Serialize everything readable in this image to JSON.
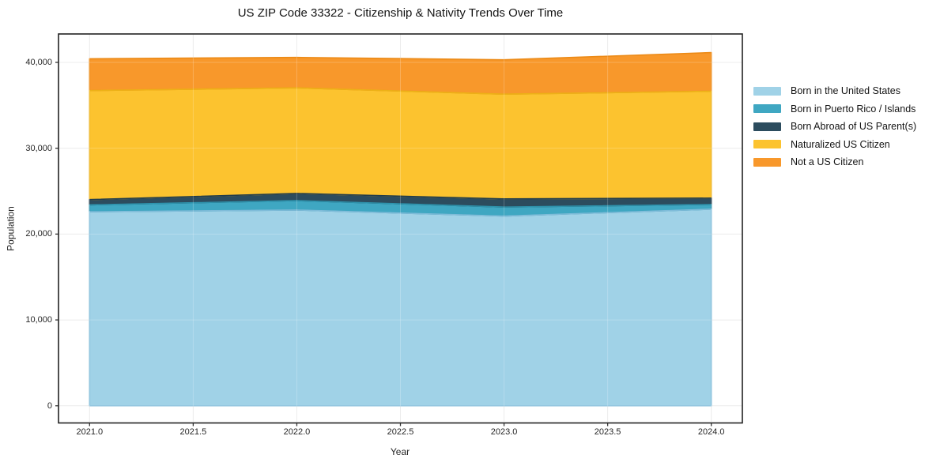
{
  "page": {
    "title": "US ZIP Code 33322 - Citizenship & Nativity Trends Over Time"
  },
  "chart_data": {
    "type": "area",
    "stacked": true,
    "title": "US ZIP Code 33322 - Citizenship & Nativity Trends Over Time",
    "xlabel": "Year",
    "ylabel": "Population",
    "x": [
      2021,
      2022,
      2023,
      2024
    ],
    "series": [
      {
        "name": "Born in the United States",
        "color": "#a0d2e7",
        "edge": "#7fbcd9",
        "values": [
          22600,
          22800,
          22100,
          22900
        ]
      },
      {
        "name": "Born in Puerto Rico / Islands",
        "color": "#3fa7c2",
        "edge": "#2e93ad",
        "values": [
          800,
          1100,
          1050,
          550
        ]
      },
      {
        "name": "Born Abroad of US Parent(s)",
        "color": "#2c4c5e",
        "edge": "#223d4c",
        "values": [
          620,
          830,
          950,
          740
        ]
      },
      {
        "name": "Naturalized US Citizen",
        "color": "#fcc32f",
        "edge": "#edb117",
        "values": [
          12700,
          12300,
          12200,
          12450
        ]
      },
      {
        "name": "Not a US Citizen",
        "color": "#f8982b",
        "edge": "#ec8a16",
        "values": [
          3700,
          3550,
          4000,
          4500
        ]
      }
    ],
    "stacked_totals": [
      40420,
      40580,
      40300,
      41140
    ],
    "xlim": [
      2020.85,
      2024.15
    ],
    "ylim": [
      -2000,
      43310
    ],
    "x_ticks": [
      {
        "v": 2021.0,
        "label": "2021.0"
      },
      {
        "v": 2021.5,
        "label": "2021.5"
      },
      {
        "v": 2022.0,
        "label": "2022.0"
      },
      {
        "v": 2022.5,
        "label": "2022.5"
      },
      {
        "v": 2023.0,
        "label": "2023.0"
      },
      {
        "v": 2023.5,
        "label": "2023.5"
      },
      {
        "v": 2024.0,
        "label": "2024.0"
      }
    ],
    "y_ticks": [
      {
        "v": 0,
        "label": "0"
      },
      {
        "v": 10000,
        "label": "10,000"
      },
      {
        "v": 20000,
        "label": "20,000"
      },
      {
        "v": 30000,
        "label": "30,000"
      },
      {
        "v": 40000,
        "label": "40,000"
      }
    ],
    "grid": true,
    "grid_color": "#e7e7e7",
    "spine_color": "#222222",
    "tick_color": "#333333",
    "legend_position": "right-outside"
  }
}
